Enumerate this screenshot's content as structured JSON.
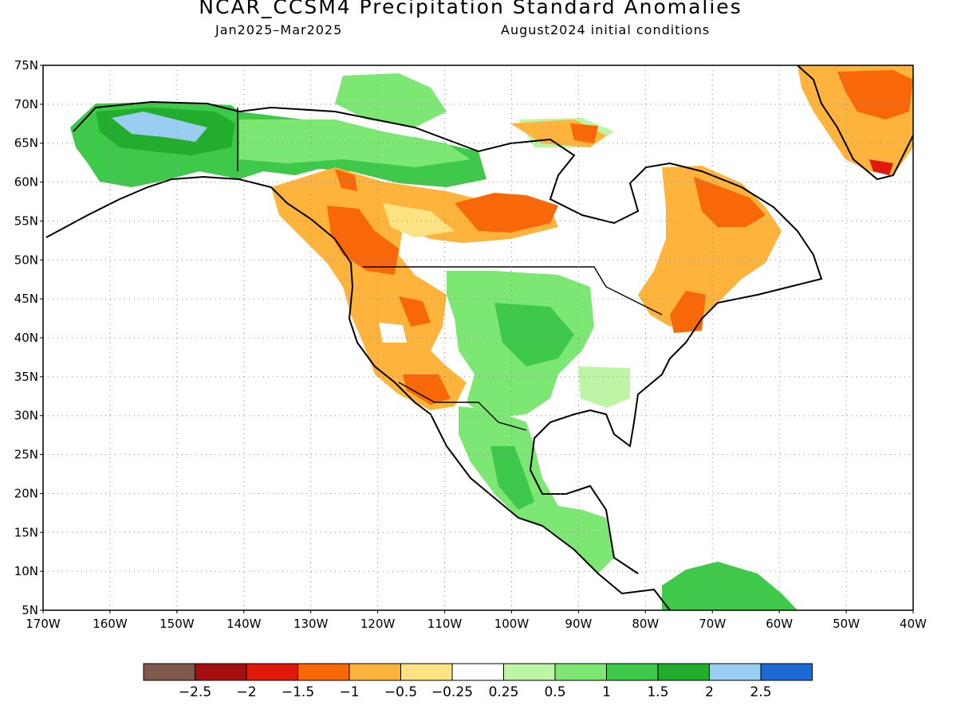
{
  "title": "NCAR_CCSM4 Precipitation Standard Anomalies",
  "subtitle_left": "Jan2025–Mar2025",
  "subtitle_right": "August2024 initial conditions",
  "map": {
    "lon_range": [
      -170,
      -40
    ],
    "lat_range": [
      5,
      75
    ],
    "lat_ticks": [
      "75N",
      "70N",
      "65N",
      "60N",
      "55N",
      "50N",
      "45N",
      "40N",
      "35N",
      "30N",
      "25N",
      "20N",
      "15N",
      "10N",
      "5N"
    ],
    "lon_ticks": [
      "170W",
      "160W",
      "150W",
      "140W",
      "130W",
      "120W",
      "110W",
      "100W",
      "90W",
      "80W",
      "70W",
      "60W",
      "50W",
      "40W"
    ],
    "grid": "dotted"
  },
  "colorbar": {
    "colors": [
      "#7f5a4c",
      "#a50e0e",
      "#e01a0a",
      "#f86808",
      "#fdb33c",
      "#fde382",
      "#ffffff",
      "#bdf5a5",
      "#7de773",
      "#3ec94a",
      "#23ad2c",
      "#99cdf2",
      "#1c6ad6"
    ],
    "labels": [
      "−2.5",
      "−2",
      "−1.5",
      "−1",
      "−0.5",
      "−0.25",
      "0.25",
      "0.5",
      "1",
      "1.5",
      "2",
      "2.5"
    ]
  }
}
